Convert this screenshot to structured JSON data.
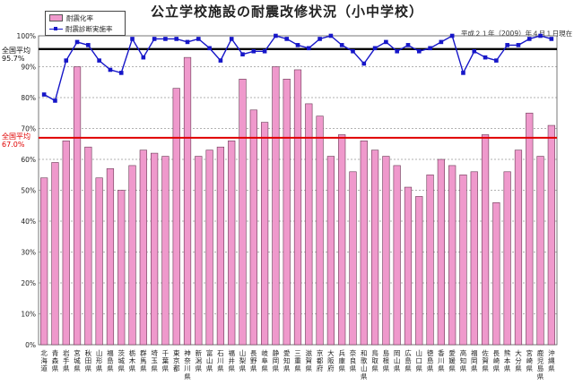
{
  "title": "公立学校施設の耐震改修状況（小中学校）",
  "date_note": "平成２１年（2009）年４月１日現在",
  "legend": {
    "bar_label": "耐震化率",
    "line_label": "耐震診断実施率"
  },
  "reference_lines": {
    "diagnosis_avg": {
      "label_line1": "全国平均",
      "label_line2": "95.7%",
      "value": 95.7,
      "color": "#000000"
    },
    "seismic_avg": {
      "label_line1": "全国平均",
      "label_line2": "67.0%",
      "value": 67.0,
      "color": "#e00000"
    }
  },
  "chart_data": {
    "type": "bar",
    "ylim": [
      0,
      100
    ],
    "yticks": [
      "0%",
      "10%",
      "20%",
      "30%",
      "40%",
      "50%",
      "60%",
      "70%",
      "80%",
      "90%",
      "100%"
    ],
    "grid": true,
    "legend_position": "top-left",
    "categories": [
      "北海道",
      "青森県",
      "岩手県",
      "宮城県",
      "秋田県",
      "山形県",
      "福島県",
      "茨城県",
      "栃木県",
      "群馬県",
      "埼玉県",
      "千葉県",
      "東京都",
      "神奈川県",
      "新潟県",
      "富山県",
      "石川県",
      "福井県",
      "山梨県",
      "長野県",
      "岐阜県",
      "静岡県",
      "愛知県",
      "三重県",
      "滋賀県",
      "京都府",
      "大阪府",
      "兵庫県",
      "奈良県",
      "和歌山県",
      "鳥取県",
      "島根県",
      "岡山県",
      "広島県",
      "山口県",
      "徳島県",
      "香川県",
      "愛媛県",
      "高知県",
      "福岡県",
      "佐賀県",
      "長崎県",
      "熊本県",
      "大分県",
      "宮崎県",
      "鹿児島県",
      "沖縄県"
    ],
    "series": [
      {
        "name": "耐震化率",
        "type": "bar",
        "color": "#ef99cc",
        "values": [
          54,
          59,
          66,
          90,
          64,
          54,
          57,
          50,
          58,
          63,
          62,
          61,
          83,
          93,
          61,
          63,
          64,
          66,
          86,
          76,
          72,
          90,
          86,
          89,
          78,
          74,
          61,
          68,
          56,
          66,
          63,
          61,
          58,
          51,
          48,
          55,
          60,
          58,
          55,
          56,
          68,
          46,
          56,
          63,
          75,
          61,
          71
        ]
      },
      {
        "name": "耐震診断実施率",
        "type": "line",
        "color": "#1616c8",
        "values": [
          81,
          79,
          92,
          98,
          97,
          92,
          89,
          88,
          99,
          93,
          99,
          99,
          99,
          98,
          99,
          96,
          92,
          99,
          94,
          95,
          95,
          100,
          99,
          97,
          96,
          99,
          100,
          97,
          95,
          91,
          96,
          98,
          95,
          97,
          95,
          96,
          98,
          100,
          88,
          95,
          93,
          92,
          97,
          97,
          99,
          100,
          99
        ]
      }
    ]
  }
}
